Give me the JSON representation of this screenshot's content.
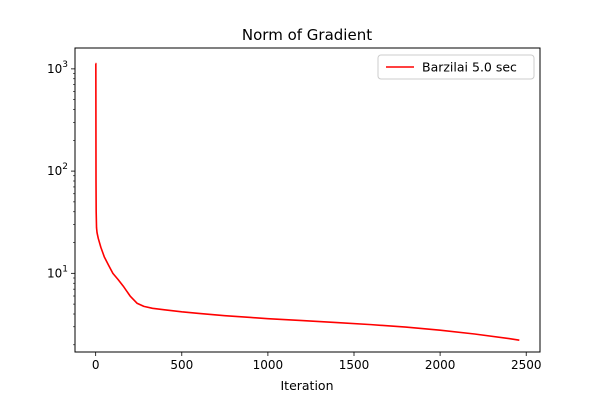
{
  "chart_data": {
    "type": "line",
    "title": "Norm of Gradient",
    "xlabel": "Iteration",
    "ylabel": "",
    "yscale": "log",
    "xlim": [
      -120,
      2580
    ],
    "ylim": [
      1.7,
      1600
    ],
    "x_ticks": [
      0,
      500,
      1000,
      1500,
      2000,
      2500
    ],
    "y_ticks": [
      {
        "value": 10,
        "base": "10",
        "exp": "1"
      },
      {
        "value": 100,
        "base": "10",
        "exp": "2"
      },
      {
        "value": 1000,
        "base": "10",
        "exp": "3"
      }
    ],
    "grid": false,
    "legend_position": "upper right",
    "series": [
      {
        "name": "Barzilai 5.0 sec",
        "color": "#ff0000",
        "x": [
          0,
          1,
          2,
          3,
          5,
          8,
          15,
          30,
          50,
          75,
          100,
          130,
          160,
          200,
          240,
          280,
          330,
          400,
          500,
          600,
          750,
          900,
          1000,
          1200,
          1400,
          1600,
          1800,
          2000,
          2200,
          2400,
          2460
        ],
        "y": [
          1130,
          1130,
          80,
          40,
          28,
          25,
          22,
          18,
          14.5,
          12,
          10,
          8.7,
          7.5,
          6.0,
          5.1,
          4.75,
          4.55,
          4.4,
          4.2,
          4.05,
          3.85,
          3.7,
          3.6,
          3.45,
          3.3,
          3.15,
          2.98,
          2.78,
          2.55,
          2.3,
          2.22
        ]
      }
    ]
  }
}
